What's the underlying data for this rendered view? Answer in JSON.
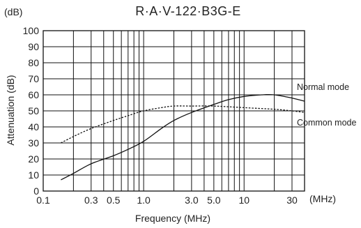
{
  "chart_data": {
    "type": "line",
    "title": "R·A·V-122·B3G-E",
    "xlabel": "Frequency (MHz)",
    "ylabel": "Attenuation (dB)",
    "y_unit_label": "(dB)",
    "x_unit_label": "(MHz)",
    "x_scale": "log",
    "xlim": [
      0.1,
      40
    ],
    "ylim": [
      0,
      100
    ],
    "grid": true,
    "x_tick_labels": [
      {
        "value": 0.1,
        "label": "0.1"
      },
      {
        "value": 0.3,
        "label": "0.3"
      },
      {
        "value": 0.5,
        "label": "0.5"
      },
      {
        "value": 1,
        "label": "1.0"
      },
      {
        "value": 3,
        "label": "3.0"
      },
      {
        "value": 5,
        "label": "5.0"
      },
      {
        "value": 10,
        "label": "10"
      },
      {
        "value": 30,
        "label": "30"
      }
    ],
    "x_gridlines": [
      0.2,
      0.3,
      0.4,
      0.5,
      0.6,
      0.7,
      0.8,
      0.9,
      1,
      2,
      3,
      4,
      5,
      6,
      7,
      8,
      9,
      10,
      20,
      30
    ],
    "y_ticks": [
      0,
      10,
      20,
      30,
      40,
      50,
      60,
      70,
      80,
      90,
      100
    ],
    "series": [
      {
        "name": "Normal mode",
        "style": "solid",
        "x": [
          0.15,
          0.2,
          0.3,
          0.5,
          0.7,
          1.0,
          1.5,
          2.0,
          3.0,
          5.0,
          7.0,
          10,
          15,
          20,
          30,
          40
        ],
        "y": [
          7,
          11,
          17,
          22,
          26,
          31,
          39,
          44,
          49,
          54,
          57,
          59,
          60,
          60,
          58,
          56
        ]
      },
      {
        "name": "Common mode",
        "style": "dashed",
        "x": [
          0.15,
          0.2,
          0.3,
          0.5,
          0.7,
          1.0,
          1.5,
          2.0,
          3.0,
          5.0,
          10,
          20,
          30,
          40
        ],
        "y": [
          30,
          34,
          39,
          44,
          47,
          50,
          52,
          53,
          53,
          53,
          52,
          51,
          50,
          49
        ]
      }
    ]
  }
}
